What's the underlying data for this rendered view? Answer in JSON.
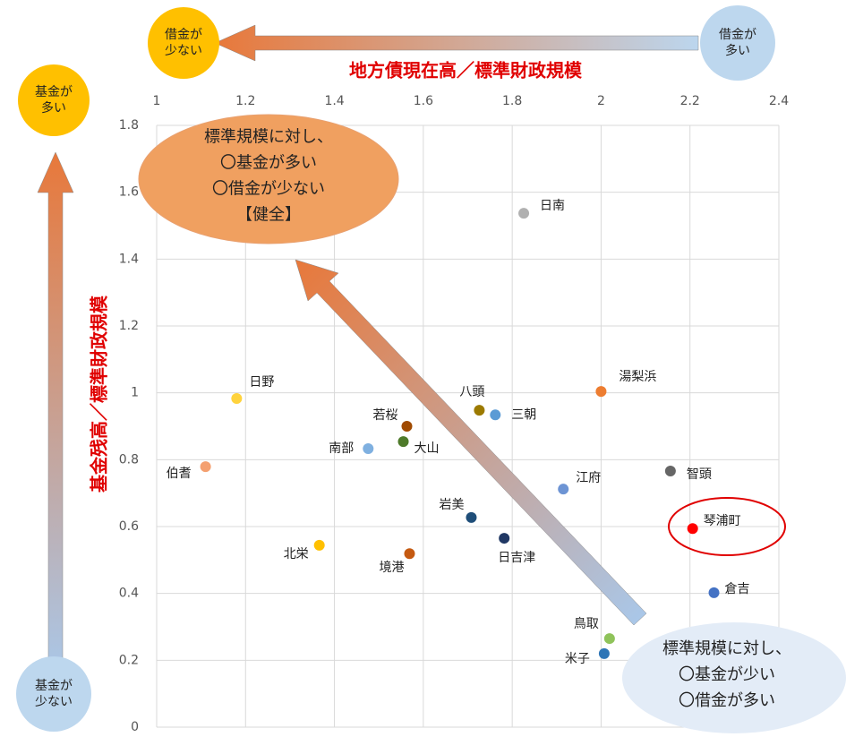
{
  "chart_data": {
    "type": "scatter",
    "x_label": "地方債現在高／標準財政規模",
    "y_label": "基金残高／標準財政規模",
    "xlim": [
      1,
      2.4
    ],
    "xticks": [
      1,
      1.2,
      1.4,
      1.6,
      1.8,
      2,
      2.2,
      2.4
    ],
    "ylim": [
      0,
      1.8
    ],
    "yticks": [
      0,
      0.2,
      0.4,
      0.6,
      0.8,
      1,
      1.2,
      1.4,
      1.6,
      1.8
    ],
    "grid": true,
    "points": [
      {
        "label": "日南",
        "x": 1.826,
        "y": 1.537,
        "color": "#b0b0b0"
      },
      {
        "label": "湯梨浜",
        "x": 2.0,
        "y": 1.004,
        "color": "#ed7d31"
      },
      {
        "label": "日野",
        "x": 1.18,
        "y": 0.983,
        "color": "#ffd33d"
      },
      {
        "label": "八頭",
        "x": 1.726,
        "y": 0.948,
        "color": "#9c7a00"
      },
      {
        "label": "三朝",
        "x": 1.762,
        "y": 0.934,
        "color": "#5b9bd5"
      },
      {
        "label": "若桜",
        "x": 1.563,
        "y": 0.9,
        "color": "#a04a00"
      },
      {
        "label": "大山",
        "x": 1.555,
        "y": 0.854,
        "color": "#4e7a2a"
      },
      {
        "label": "南部",
        "x": 1.476,
        "y": 0.833,
        "color": "#7fb0e0"
      },
      {
        "label": "伯耆",
        "x": 1.11,
        "y": 0.779,
        "color": "#f4a070"
      },
      {
        "label": "智頭",
        "x": 2.156,
        "y": 0.766,
        "color": "#666666"
      },
      {
        "label": "江府",
        "x": 1.915,
        "y": 0.712,
        "color": "#6d94d4"
      },
      {
        "label": "岩美",
        "x": 1.708,
        "y": 0.627,
        "color": "#1f4e79"
      },
      {
        "label": "琴浦町",
        "x": 2.206,
        "y": 0.594,
        "color": "#ff0000"
      },
      {
        "label": "日吉津",
        "x": 1.782,
        "y": 0.565,
        "color": "#203864"
      },
      {
        "label": "北栄",
        "x": 1.366,
        "y": 0.544,
        "color": "#ffc000"
      },
      {
        "label": "境港",
        "x": 1.569,
        "y": 0.519,
        "color": "#c55a11"
      },
      {
        "label": "倉吉",
        "x": 2.254,
        "y": 0.402,
        "color": "#4472c4"
      },
      {
        "label": "鳥取",
        "x": 2.019,
        "y": 0.265,
        "color": "#8fc35a"
      },
      {
        "label": "米子",
        "x": 2.007,
        "y": 0.22,
        "color": "#2e75b6"
      }
    ],
    "annotations": {
      "less_debt": [
        "借金が",
        "少ない"
      ],
      "more_debt": [
        "借金が",
        "多い"
      ],
      "more_fund": [
        "基金が",
        "多い"
      ],
      "less_fund": [
        "基金が",
        "少ない"
      ],
      "healthy": [
        "標準規模に対し、",
        "〇基金が多い",
        "〇借金が少ない",
        "【健全】"
      ],
      "unhealthy": [
        "標準規模に対し、",
        "〇基金が少い",
        "〇借金が多い"
      ]
    }
  }
}
